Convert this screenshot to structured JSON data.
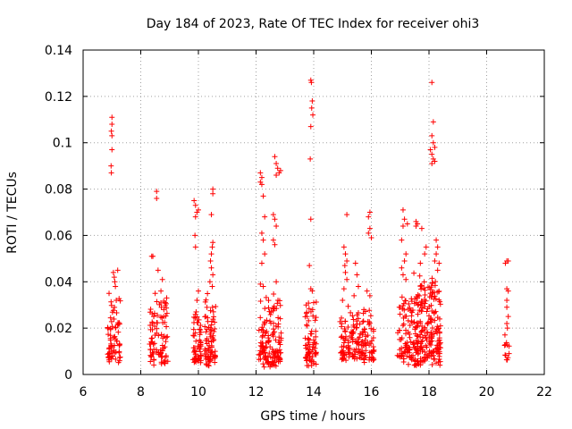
{
  "chart_data": {
    "type": "scatter",
    "title": "Day 184 of 2023, Rate Of TEC Index for receiver ohi3",
    "xlabel": "GPS time / hours",
    "ylabel": "ROTI / TECUs",
    "xlim": [
      6,
      22
    ],
    "ylim": [
      0,
      0.14
    ],
    "xticks": [
      "6",
      "8",
      "10",
      "12",
      "14",
      "16",
      "18",
      "20",
      "22"
    ],
    "yticks": [
      "0",
      "0.02",
      "0.04",
      "0.06",
      "0.08",
      "0.1",
      "0.12",
      "0.14"
    ],
    "grid": true,
    "marker": "+",
    "color": "#ff0000",
    "clusters": [
      {
        "x_range": [
          6.85,
          7.3
        ],
        "y_range": [
          0.004,
          0.035
        ],
        "count": 70
      },
      {
        "x_range": [
          8.3,
          8.95
        ],
        "y_range": [
          0.004,
          0.035
        ],
        "count": 90
      },
      {
        "x_range": [
          9.8,
          10.1
        ],
        "y_range": [
          0.004,
          0.028
        ],
        "count": 55
      },
      {
        "x_range": [
          10.2,
          10.6
        ],
        "y_range": [
          0.003,
          0.038
        ],
        "count": 75
      },
      {
        "x_range": [
          12.1,
          12.9
        ],
        "y_range": [
          0.003,
          0.035
        ],
        "count": 140
      },
      {
        "x_range": [
          13.7,
          14.1
        ],
        "y_range": [
          0.003,
          0.035
        ],
        "count": 75
      },
      {
        "x_range": [
          14.9,
          15.6
        ],
        "y_range": [
          0.005,
          0.03
        ],
        "count": 90
      },
      {
        "x_range": [
          15.6,
          16.1
        ],
        "y_range": [
          0.005,
          0.03
        ],
        "count": 70
      },
      {
        "x_range": [
          16.9,
          17.4
        ],
        "y_range": [
          0.004,
          0.035
        ],
        "count": 70
      },
      {
        "x_range": [
          17.4,
          18.4
        ],
        "y_range": [
          0.003,
          0.045
        ],
        "count": 230
      },
      {
        "x_range": [
          20.6,
          20.8
        ],
        "y_range": [
          0.006,
          0.02
        ],
        "count": 12
      }
    ],
    "points": [
      [
        7.0,
        0.111
      ],
      [
        7.0,
        0.108
      ],
      [
        6.98,
        0.105
      ],
      [
        7.0,
        0.103
      ],
      [
        7.0,
        0.097
      ],
      [
        6.97,
        0.09
      ],
      [
        6.98,
        0.087
      ],
      [
        7.05,
        0.044
      ],
      [
        7.08,
        0.042
      ],
      [
        7.1,
        0.04
      ],
      [
        7.12,
        0.038
      ],
      [
        6.9,
        0.035
      ],
      [
        7.15,
        0.032
      ],
      [
        7.2,
        0.045
      ],
      [
        8.42,
        0.051
      ],
      [
        8.38,
        0.051
      ],
      [
        8.55,
        0.079
      ],
      [
        8.55,
        0.076
      ],
      [
        8.5,
        0.035
      ],
      [
        8.7,
        0.036
      ],
      [
        8.8,
        0.028
      ],
      [
        8.85,
        0.031
      ],
      [
        8.9,
        0.033
      ],
      [
        8.6,
        0.045
      ],
      [
        8.75,
        0.041
      ],
      [
        8.8,
        0.025
      ],
      [
        9.85,
        0.075
      ],
      [
        9.9,
        0.073
      ],
      [
        9.95,
        0.07
      ],
      [
        9.9,
        0.068
      ],
      [
        10.0,
        0.071
      ],
      [
        9.88,
        0.06
      ],
      [
        9.9,
        0.055
      ],
      [
        9.95,
        0.032
      ],
      [
        10.0,
        0.036
      ],
      [
        9.92,
        0.027
      ],
      [
        10.5,
        0.08
      ],
      [
        10.5,
        0.078
      ],
      [
        10.45,
        0.069
      ],
      [
        10.5,
        0.057
      ],
      [
        10.48,
        0.055
      ],
      [
        10.45,
        0.052
      ],
      [
        10.42,
        0.049
      ],
      [
        10.45,
        0.046
      ],
      [
        10.5,
        0.043
      ],
      [
        10.4,
        0.04
      ],
      [
        10.48,
        0.038
      ],
      [
        12.15,
        0.087
      ],
      [
        12.2,
        0.085
      ],
      [
        12.15,
        0.083
      ],
      [
        12.2,
        0.082
      ],
      [
        12.25,
        0.077
      ],
      [
        12.3,
        0.068
      ],
      [
        12.2,
        0.061
      ],
      [
        12.25,
        0.058
      ],
      [
        12.3,
        0.052
      ],
      [
        12.2,
        0.048
      ],
      [
        12.15,
        0.039
      ],
      [
        12.25,
        0.038
      ],
      [
        12.65,
        0.094
      ],
      [
        12.7,
        0.091
      ],
      [
        12.75,
        0.089
      ],
      [
        12.8,
        0.087
      ],
      [
        12.7,
        0.086
      ],
      [
        12.85,
        0.088
      ],
      [
        12.6,
        0.069
      ],
      [
        12.65,
        0.067
      ],
      [
        12.7,
        0.064
      ],
      [
        12.6,
        0.058
      ],
      [
        12.65,
        0.056
      ],
      [
        12.7,
        0.04
      ],
      [
        13.9,
        0.127
      ],
      [
        13.92,
        0.126
      ],
      [
        13.95,
        0.118
      ],
      [
        13.93,
        0.115
      ],
      [
        13.97,
        0.112
      ],
      [
        13.9,
        0.107
      ],
      [
        13.88,
        0.093
      ],
      [
        13.9,
        0.067
      ],
      [
        13.85,
        0.047
      ],
      [
        13.9,
        0.037
      ],
      [
        13.95,
        0.036
      ],
      [
        14.0,
        0.031
      ],
      [
        15.15,
        0.069
      ],
      [
        15.05,
        0.055
      ],
      [
        15.1,
        0.052
      ],
      [
        15.15,
        0.049
      ],
      [
        15.08,
        0.047
      ],
      [
        15.1,
        0.044
      ],
      [
        15.15,
        0.041
      ],
      [
        15.05,
        0.037
      ],
      [
        15.0,
        0.032
      ],
      [
        15.45,
        0.048
      ],
      [
        15.5,
        0.043
      ],
      [
        15.55,
        0.038
      ],
      [
        15.4,
        0.034
      ],
      [
        15.95,
        0.07
      ],
      [
        15.9,
        0.068
      ],
      [
        15.95,
        0.063
      ],
      [
        15.9,
        0.061
      ],
      [
        16.0,
        0.059
      ],
      [
        15.85,
        0.036
      ],
      [
        15.95,
        0.034
      ],
      [
        17.1,
        0.071
      ],
      [
        17.15,
        0.067
      ],
      [
        17.1,
        0.064
      ],
      [
        17.25,
        0.065
      ],
      [
        17.05,
        0.058
      ],
      [
        17.2,
        0.052
      ],
      [
        17.15,
        0.049
      ],
      [
        17.05,
        0.046
      ],
      [
        17.1,
        0.043
      ],
      [
        17.2,
        0.041
      ],
      [
        17.55,
        0.066
      ],
      [
        17.6,
        0.065
      ],
      [
        17.55,
        0.064
      ],
      [
        17.75,
        0.063
      ],
      [
        17.7,
        0.048
      ],
      [
        17.85,
        0.052
      ],
      [
        17.9,
        0.055
      ],
      [
        18.1,
        0.126
      ],
      [
        18.15,
        0.109
      ],
      [
        18.1,
        0.103
      ],
      [
        18.15,
        0.1
      ],
      [
        18.2,
        0.098
      ],
      [
        18.05,
        0.097
      ],
      [
        18.1,
        0.095
      ],
      [
        18.15,
        0.093
      ],
      [
        18.2,
        0.092
      ],
      [
        18.1,
        0.091
      ],
      [
        18.25,
        0.058
      ],
      [
        18.3,
        0.055
      ],
      [
        18.25,
        0.052
      ],
      [
        18.2,
        0.049
      ],
      [
        18.35,
        0.048
      ],
      [
        18.3,
        0.045
      ],
      [
        20.7,
        0.049
      ],
      [
        20.75,
        0.049
      ],
      [
        20.65,
        0.048
      ],
      [
        20.7,
        0.037
      ],
      [
        20.75,
        0.036
      ],
      [
        20.7,
        0.032
      ],
      [
        20.7,
        0.029
      ],
      [
        20.75,
        0.025
      ],
      [
        20.7,
        0.022
      ],
      [
        20.72,
        0.02
      ]
    ]
  }
}
